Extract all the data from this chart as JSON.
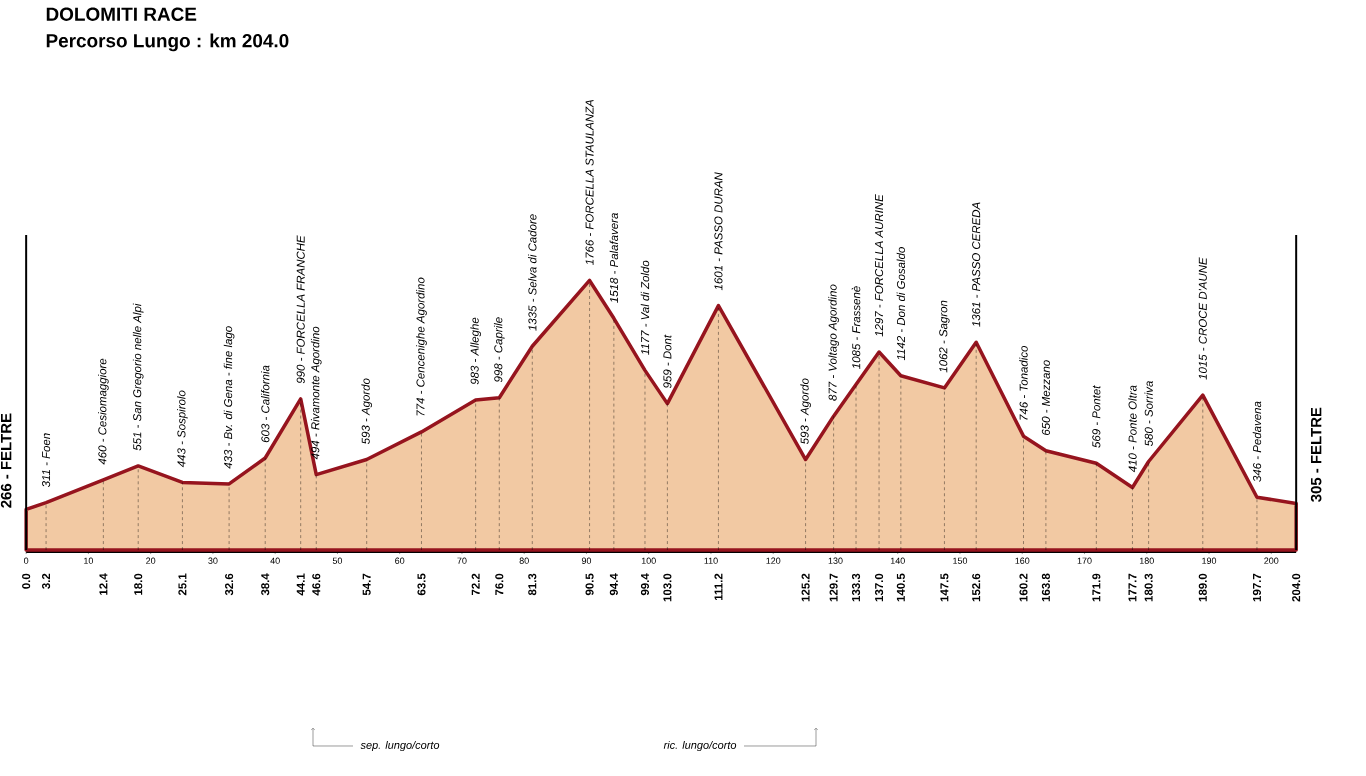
{
  "chart_data": {
    "type": "area",
    "title": "DOLOMITI RACE",
    "subtitle": "Percorso Lungo :  km 204.0",
    "x": [
      0.0,
      3.2,
      12.4,
      18.0,
      25.1,
      32.6,
      38.4,
      44.1,
      46.6,
      54.7,
      63.5,
      72.2,
      76.0,
      81.3,
      90.5,
      94.4,
      99.4,
      103.0,
      111.2,
      125.2,
      129.7,
      133.3,
      137.0,
      140.5,
      147.5,
      152.6,
      160.2,
      163.8,
      171.9,
      177.7,
      180.3,
      189.0,
      197.7,
      204.0
    ],
    "values": [
      266,
      311,
      460,
      551,
      443,
      433,
      603,
      990,
      494,
      593,
      774,
      983,
      998,
      1335,
      1766,
      1518,
      1177,
      959,
      1601,
      593,
      877,
      1085,
      1297,
      1142,
      1062,
      1361,
      746,
      650,
      569,
      410,
      580,
      1015,
      346,
      305
    ],
    "value_labels": [
      "266 - FELTRE",
      "311 - Foen",
      "460 - Cesiomaggiore",
      "551 - San Gregorio nelle Alpi",
      "443 - Sospirolo",
      "433 - Bv. di Gena - fine lago",
      "603 - California",
      "990 - FORCELLA FRANCHE",
      "494 - Rivamonte Agordino",
      "593 - Agordo",
      "774 - Cencenighe Agordino",
      "983 - Alleghe",
      "998 - Caprile",
      "1335 - Selva di Cadore",
      "1766 - FORCELLA STAULANZA",
      "1518 - Palafavera",
      "1177 - Val di Zoldo",
      "959 - Dont",
      "1601 - PASSO DURAN",
      "593 - Agordo",
      "877 - Voltago Agordino",
      "1085 - Frassenè",
      "1297 - FORCELLA AURINE",
      "1142 - Don di Gosaldo",
      "1062 - Sagron",
      "1361 - PASSO CEREDA",
      "746 - Tonadico",
      "650 - Mezzano",
      "569 - Pontet",
      "410 - Ponte Oltra",
      "580 - Sorriva",
      "1015 - CROCE D'AUNE",
      "346 - Pedavena",
      "305 - FELTRE"
    ],
    "color": "#f2c9a3",
    "xlim": [
      0,
      204
    ],
    "xticks": [
      0,
      10,
      20,
      30,
      40,
      50,
      60,
      70,
      80,
      90,
      100,
      110,
      120,
      130,
      140,
      150,
      160,
      170,
      180,
      190,
      200
    ],
    "x2lim": [
      0,
      204
    ],
    "x2ticks": [
      {
        "value": 0.0,
        "label": "0.0"
      },
      {
        "value": 3.2,
        "label": "3.2"
      },
      {
        "value": 12.4,
        "label": "12.4"
      },
      {
        "value": 18.0,
        "label": "18.0"
      },
      {
        "value": 25.1,
        "label": "25.1"
      },
      {
        "value": 32.6,
        "label": "32.6"
      },
      {
        "value": 38.4,
        "label": "38.4"
      },
      {
        "value": 44.1,
        "label": "44.1"
      },
      {
        "value": 46.6,
        "label": "46.6"
      },
      {
        "value": 54.7,
        "label": "54.7"
      },
      {
        "value": 63.5,
        "label": "63.5"
      },
      {
        "value": 72.2,
        "label": "72.2"
      },
      {
        "value": 76.0,
        "label": "76.0"
      },
      {
        "value": 81.3,
        "label": "81.3"
      },
      {
        "value": 90.5,
        "label": "90.5"
      },
      {
        "value": 94.4,
        "label": "94.4"
      },
      {
        "value": 99.4,
        "label": "99.4"
      },
      {
        "value": 103.0,
        "label": "103.0"
      },
      {
        "value": 111.2,
        "label": "111.2"
      },
      {
        "value": 125.2,
        "label": "125.2"
      },
      {
        "value": 129.7,
        "label": "129.7"
      },
      {
        "value": 133.3,
        "label": "133.3"
      },
      {
        "value": 137.0,
        "label": "137.0"
      },
      {
        "value": 140.5,
        "label": "140.5"
      },
      {
        "value": 147.5,
        "label": "147.5"
      },
      {
        "value": 152.6,
        "label": "152.6"
      },
      {
        "value": 160.2,
        "label": "160.2"
      },
      {
        "value": 163.8,
        "label": "163.8"
      },
      {
        "value": 171.9,
        "label": "171.9"
      },
      {
        "value": 177.7,
        "label": "177.7"
      },
      {
        "value": 180.3,
        "label": "180.3"
      },
      {
        "value": 189.0,
        "label": "189.0"
      },
      {
        "value": 197.7,
        "label": "197.7"
      },
      {
        "value": 204.0,
        "label": "204.0"
      }
    ],
    "tick_labels": "x",
    "ref_lines": [
      {
        "axis": "x",
        "value": 3.2,
        "line_style": "dashed",
        "color": "#000000"
      },
      {
        "axis": "x",
        "value": 12.4,
        "line_style": "dashed",
        "color": "#000000"
      },
      {
        "axis": "x",
        "value": 18.0,
        "line_style": "dashed",
        "color": "#000000"
      },
      {
        "axis": "x",
        "value": 25.1,
        "line_style": "dashed",
        "color": "#000000"
      },
      {
        "axis": "x",
        "value": 32.6,
        "line_style": "dashed",
        "color": "#000000"
      },
      {
        "axis": "x",
        "value": 38.4,
        "line_style": "dashed",
        "color": "#000000"
      },
      {
        "axis": "x",
        "value": 44.1,
        "line_style": "dashed",
        "color": "#000000"
      },
      {
        "axis": "x",
        "value": 46.6,
        "line_style": "dashed",
        "color": "#000000"
      },
      {
        "axis": "x",
        "value": 54.7,
        "line_style": "dashed",
        "color": "#000000"
      },
      {
        "axis": "x",
        "value": 63.5,
        "line_style": "dashed",
        "color": "#000000"
      },
      {
        "axis": "x",
        "value": 72.2,
        "line_style": "dashed",
        "color": "#000000"
      },
      {
        "axis": "x",
        "value": 76.0,
        "line_style": "dashed",
        "color": "#000000"
      },
      {
        "axis": "x",
        "value": 81.3,
        "line_style": "dashed",
        "color": "#000000"
      },
      {
        "axis": "x",
        "value": 90.5,
        "line_style": "dashed",
        "color": "#000000"
      },
      {
        "axis": "x",
        "value": 94.4,
        "line_style": "dashed",
        "color": "#000000"
      },
      {
        "axis": "x",
        "value": 99.4,
        "line_style": "dashed",
        "color": "#000000"
      },
      {
        "axis": "x",
        "value": 103.0,
        "line_style": "dashed",
        "color": "#000000"
      },
      {
        "axis": "x",
        "value": 111.2,
        "line_style": "dashed",
        "color": "#000000"
      },
      {
        "axis": "x",
        "value": 125.2,
        "line_style": "dashed",
        "color": "#000000"
      },
      {
        "axis": "x",
        "value": 129.7,
        "line_style": "dashed",
        "color": "#000000"
      },
      {
        "axis": "x",
        "value": 133.3,
        "line_style": "dashed",
        "color": "#000000"
      },
      {
        "axis": "x",
        "value": 137.0,
        "line_style": "dashed",
        "color": "#000000"
      },
      {
        "axis": "x",
        "value": 140.5,
        "line_style": "dashed",
        "color": "#000000"
      },
      {
        "axis": "x",
        "value": 147.5,
        "line_style": "dashed",
        "color": "#000000"
      },
      {
        "axis": "x",
        "value": 152.6,
        "line_style": "dashed",
        "color": "#000000"
      },
      {
        "axis": "x",
        "value": 160.2,
        "line_style": "dashed",
        "color": "#000000"
      },
      {
        "axis": "x",
        "value": 163.8,
        "line_style": "dashed",
        "color": "#000000"
      },
      {
        "axis": "x",
        "value": 171.9,
        "line_style": "dashed",
        "color": "#000000"
      },
      {
        "axis": "x",
        "value": 177.7,
        "line_style": "dashed",
        "color": "#000000"
      },
      {
        "axis": "x",
        "value": 180.3,
        "line_style": "dashed",
        "color": "#000000"
      },
      {
        "axis": "x",
        "value": 189.0,
        "line_style": "dashed",
        "color": "#000000"
      },
      {
        "axis": "x",
        "value": 197.7,
        "line_style": "dashed",
        "color": "#000000"
      }
    ],
    "annotations": [
      "sep. lungo/corto",
      "ric. lungo/corto"
    ]
  }
}
